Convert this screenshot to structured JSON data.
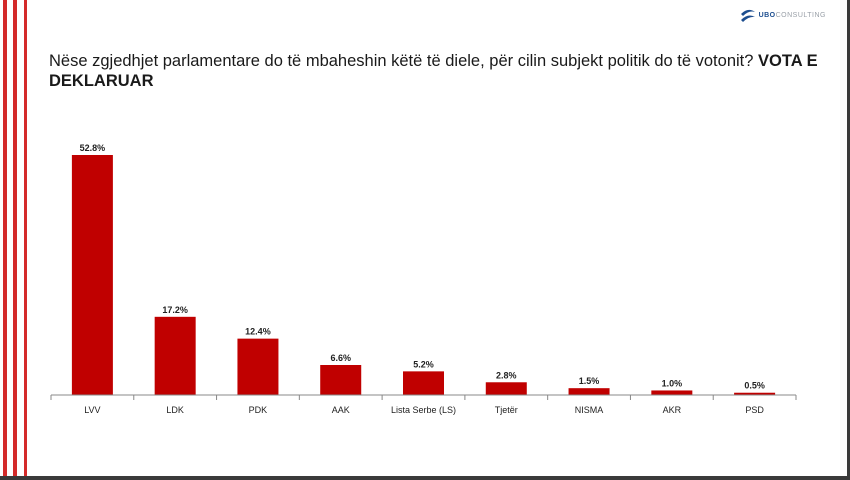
{
  "logo": {
    "text_strong": "UBO",
    "text_rest": "CONSULTING"
  },
  "question": {
    "text": "Nëse zgjedhjet parlamentare do të mbaheshin këtë të diele, për cilin subjekt politik do të votonit?",
    "emphasis": "VOTA E DEKLARUAR"
  },
  "colors": {
    "bar": "#c00000",
    "accent_stripe": "#d42a2a",
    "axis": "#888888"
  },
  "chart_data": {
    "type": "bar",
    "categories": [
      "LVV",
      "LDK",
      "PDK",
      "AAK",
      "Lista Serbe (LS)",
      "Tjetër",
      "NISMA",
      "AKR",
      "PSD"
    ],
    "values": [
      52.8,
      17.2,
      12.4,
      6.6,
      5.2,
      2.8,
      1.5,
      1.0,
      0.5
    ],
    "data_labels": [
      "52.8%",
      "17.2%",
      "12.4%",
      "6.6%",
      "5.2%",
      "2.8%",
      "1.5%",
      "1.0%",
      "0.5%"
    ],
    "unit": "%",
    "ylim": [
      0,
      52.8
    ],
    "grid": false,
    "legend": "none"
  }
}
